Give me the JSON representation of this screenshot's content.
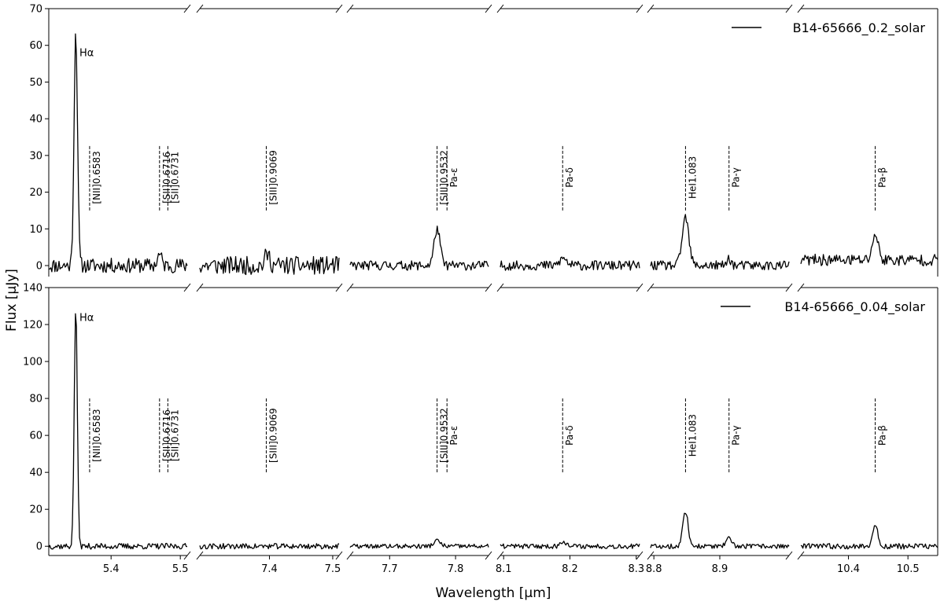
{
  "chart_data": {
    "type": "line",
    "xlabel": "Wavelength [μm]",
    "ylabel": "Flux [μJy]",
    "x_segments": [
      {
        "range": [
          5.31,
          5.51
        ],
        "ticks": [
          5.4,
          5.5
        ],
        "tick_labels": [
          "5.4",
          "5.5"
        ]
      },
      {
        "range": [
          7.29,
          7.51
        ],
        "ticks": [
          7.4,
          7.5
        ],
        "tick_labels": [
          "7.4",
          "7.5"
        ]
      },
      {
        "range": [
          7.64,
          7.85
        ],
        "ticks": [
          7.7,
          7.8
        ],
        "tick_labels": [
          "7.7",
          "7.8"
        ]
      },
      {
        "range": [
          8.095,
          8.305
        ],
        "ticks": [
          8.1,
          8.2,
          8.3
        ],
        "tick_labels": [
          "8.1",
          "8.2",
          "8.3"
        ]
      },
      {
        "range": [
          8.795,
          9.005
        ],
        "ticks": [
          8.8,
          8.9
        ],
        "tick_labels": [
          "8.8",
          "8.9"
        ]
      },
      {
        "range": [
          10.32,
          10.55
        ],
        "ticks": [
          10.4,
          10.5
        ],
        "tick_labels": [
          "10.4",
          "10.5"
        ]
      }
    ],
    "lines": [
      {
        "label": "[NII]0.6583",
        "x": 5.369
      },
      {
        "label": "[SII]0.6716",
        "x": 5.47
      },
      {
        "label": "[SII]0.6731",
        "x": 5.482
      },
      {
        "label": "[SIII]0.9069",
        "x": 7.395
      },
      {
        "label": "[SIII]0.9532",
        "x": 7.772
      },
      {
        "label": "Pa-ε",
        "x": 7.787
      },
      {
        "label": "Pa-δ",
        "x": 8.189
      },
      {
        "label": "HeI1.083",
        "x": 8.848
      },
      {
        "label": "Pa-γ",
        "x": 8.914
      },
      {
        "label": "Pa-β",
        "x": 10.445
      }
    ],
    "panels": [
      {
        "name": "B14-65666_0.2_solar",
        "ylim": [
          -3,
          70
        ],
        "yticks": [
          0,
          10,
          20,
          30,
          40,
          50,
          60,
          70
        ],
        "ytick_labels": [
          "0",
          "10",
          "20",
          "30",
          "40",
          "50",
          "60",
          "70"
        ],
        "line_marker_range": [
          15,
          33
        ],
        "peak_label": {
          "text": "Hα",
          "x": 5.352,
          "y": 57
        },
        "noise": [
          2.0,
          2.5,
          1.3,
          1.3,
          1.3,
          1.6
        ],
        "seed": 11,
        "features": [
          {
            "x": 5.349,
            "amp": 64,
            "sigma": 0.0025
          },
          {
            "x": 5.47,
            "amp": 3,
            "sigma": 0.003
          },
          {
            "x": 7.397,
            "amp": 3,
            "sigma": 0.004
          },
          {
            "x": 7.772,
            "amp": 10,
            "sigma": 0.0045
          },
          {
            "x": 8.19,
            "amp": 2,
            "sigma": 0.005
          },
          {
            "x": 8.848,
            "amp": 13,
            "sigma": 0.005
          },
          {
            "x": 8.914,
            "amp": 2,
            "sigma": 0.003
          },
          {
            "x": 10.445,
            "amp": 7,
            "sigma": 0.005
          }
        ],
        "baseline": [
          0,
          0,
          0,
          0,
          0,
          1.5
        ]
      },
      {
        "name": "B14-65666_0.04_solar",
        "ylim": [
          -5,
          140
        ],
        "yticks": [
          0,
          20,
          40,
          60,
          80,
          100,
          120,
          140
        ],
        "ytick_labels": [
          "0",
          "20",
          "40",
          "60",
          "80",
          "100",
          "120",
          "140"
        ],
        "line_marker_range": [
          40,
          80
        ],
        "peak_label": {
          "text": "Hα",
          "x": 5.352,
          "y": 122
        },
        "noise": [
          1.6,
          1.5,
          1.2,
          1.3,
          1.3,
          1.5
        ],
        "seed": 37,
        "features": [
          {
            "x": 5.349,
            "amp": 130,
            "sigma": 0.0022
          },
          {
            "x": 7.772,
            "amp": 3,
            "sigma": 0.005
          },
          {
            "x": 8.19,
            "amp": 3,
            "sigma": 0.004
          },
          {
            "x": 8.848,
            "amp": 19,
            "sigma": 0.004
          },
          {
            "x": 8.914,
            "amp": 4,
            "sigma": 0.004
          },
          {
            "x": 10.445,
            "amp": 12,
            "sigma": 0.004
          }
        ],
        "baseline": [
          0,
          0,
          0,
          0,
          0,
          0
        ]
      }
    ]
  }
}
